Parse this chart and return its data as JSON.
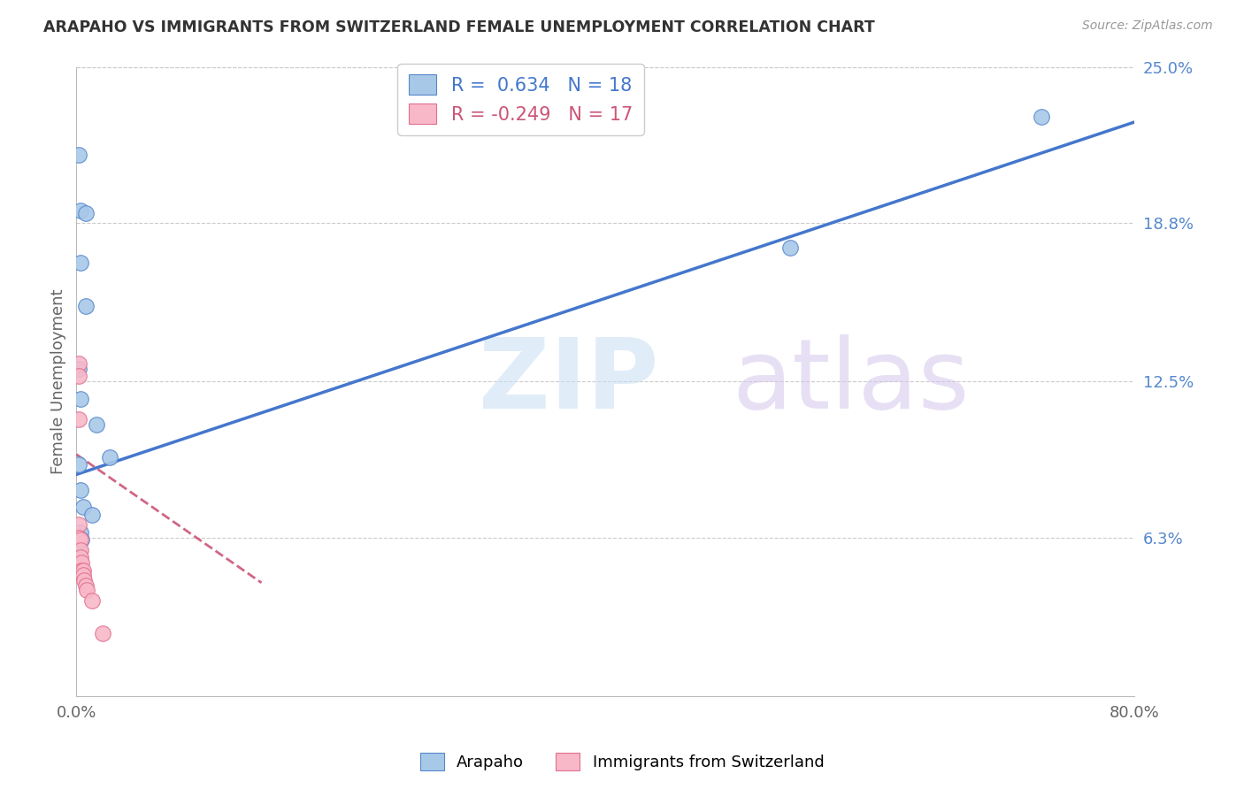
{
  "title": "ARAPAHO VS IMMIGRANTS FROM SWITZERLAND FEMALE UNEMPLOYMENT CORRELATION CHART",
  "source": "Source: ZipAtlas.com",
  "ylabel": "Female Unemployment",
  "xlim": [
    0.0,
    0.8
  ],
  "ylim": [
    0.0,
    0.25
  ],
  "xtick_vals": [
    0.0,
    0.2,
    0.4,
    0.6,
    0.8
  ],
  "xtick_labels": [
    "0.0%",
    "",
    "",
    "",
    "80.0%"
  ],
  "ytick_vals_right": [
    0.063,
    0.125,
    0.188,
    0.25
  ],
  "ytick_labels_right": [
    "6.3%",
    "12.5%",
    "18.8%",
    "25.0%"
  ],
  "legend_blue_R": "0.634",
  "legend_blue_N": "18",
  "legend_pink_R": "-0.249",
  "legend_pink_N": "17",
  "blue_scatter_color": "#a8c8e8",
  "blue_edge_color": "#5588cc",
  "pink_scatter_color": "#f8b8c8",
  "pink_edge_color": "#e07090",
  "trendline_blue_color": "#4477cc",
  "trendline_pink_color": "#cc5577",
  "legend_text_blue": "#4477cc",
  "legend_text_pink": "#cc5577",
  "title_color": "#333333",
  "source_color": "#999999",
  "right_axis_color": "#5588cc",
  "grid_color": "#cccccc",
  "background_color": "#ffffff",
  "arapaho_x": [
    0.002,
    0.003,
    0.007,
    0.003,
    0.007,
    0.002,
    0.003,
    0.015,
    0.025,
    0.73,
    0.002,
    0.003,
    0.005,
    0.012,
    0.54,
    0.003,
    0.002,
    0.004
  ],
  "arapaho_y": [
    0.215,
    0.193,
    0.192,
    0.172,
    0.155,
    0.13,
    0.118,
    0.108,
    0.095,
    0.23,
    0.092,
    0.082,
    0.075,
    0.072,
    0.178,
    0.065,
    0.058,
    0.062
  ],
  "swiss_x": [
    0.002,
    0.002,
    0.002,
    0.002,
    0.002,
    0.003,
    0.003,
    0.003,
    0.004,
    0.004,
    0.005,
    0.005,
    0.006,
    0.007,
    0.008,
    0.012,
    0.02
  ],
  "swiss_y": [
    0.132,
    0.127,
    0.11,
    0.068,
    0.063,
    0.062,
    0.058,
    0.055,
    0.053,
    0.05,
    0.05,
    0.048,
    0.046,
    0.044,
    0.042,
    0.038,
    0.025
  ],
  "trendline_blue_x0": 0.0,
  "trendline_blue_x1": 0.8,
  "trendline_blue_y0": 0.088,
  "trendline_blue_y1": 0.228,
  "trendline_pink_x0": 0.0,
  "trendline_pink_x1": 0.14,
  "trendline_pink_y0": 0.096,
  "trendline_pink_y1": 0.045
}
